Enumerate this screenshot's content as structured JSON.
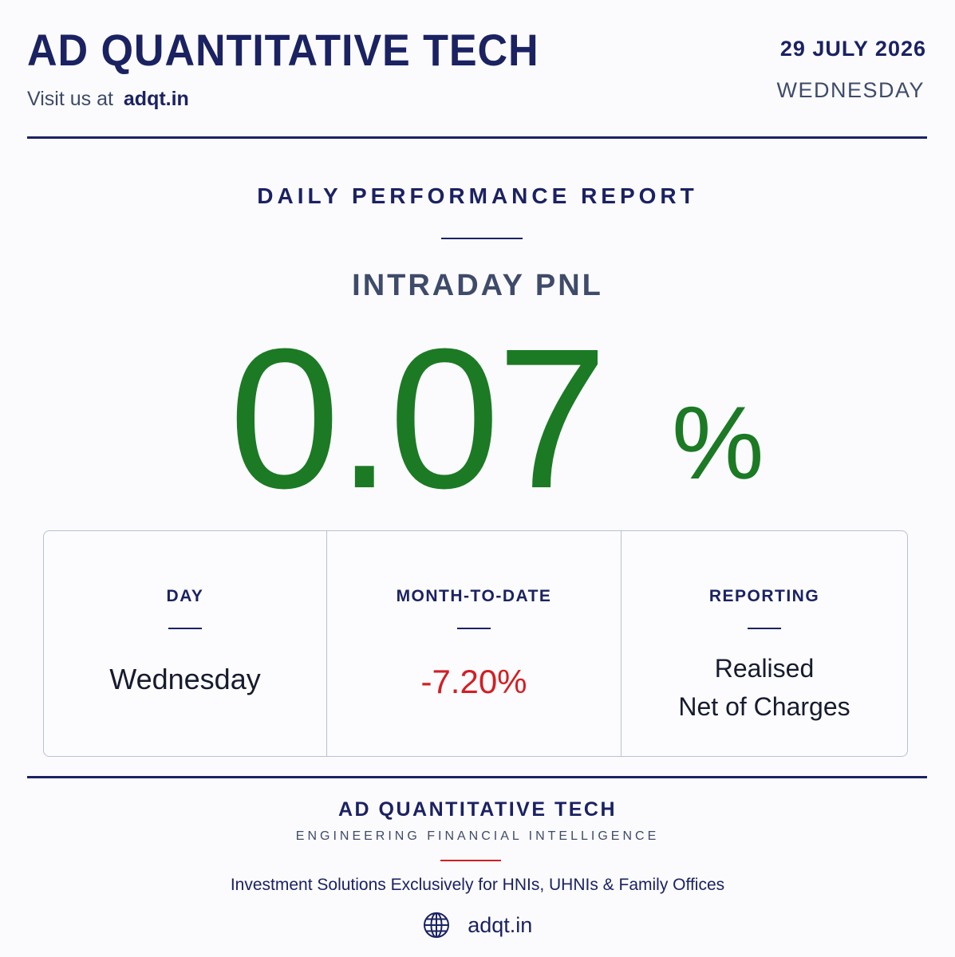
{
  "header": {
    "brand": "AD QUANTITATIVE TECH",
    "visit_prefix": "Visit us at",
    "visit_url": "adqt.in",
    "date": "29 JULY 2026",
    "weekday": "WEDNESDAY"
  },
  "report": {
    "title": "DAILY PERFORMANCE REPORT",
    "pnl_label": "INTRADAY PNL",
    "pnl_value": "0.07",
    "pnl_unit": "%"
  },
  "stats": {
    "day_label": "DAY",
    "day_value": "Wednesday",
    "mtd_label": "MONTH-TO-DATE",
    "mtd_value": "-7.20%",
    "reporting_label": "REPORTING",
    "reporting_line1": "Realised",
    "reporting_line2": "Net of Charges"
  },
  "footer": {
    "brand": "AD QUANTITATIVE TECH",
    "tagline": "ENGINEERING FINANCIAL INTELLIGENCE",
    "description": "Investment Solutions Exclusively for HNIs, UHNIs & Family Offices",
    "icon": "globe-icon",
    "url": "adqt.in"
  },
  "colors": {
    "navy": "#1b2262",
    "positive": "#1c7a25",
    "negative": "#d21f24"
  }
}
